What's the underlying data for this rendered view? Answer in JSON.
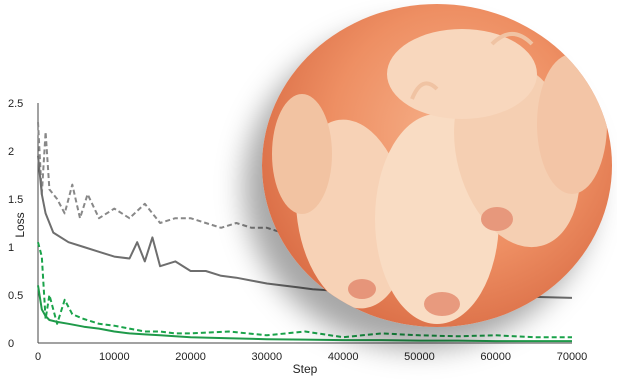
{
  "chart_data": {
    "type": "line",
    "xlabel": "Step",
    "ylabel": "Loss",
    "xlim": [
      0,
      70000
    ],
    "ylim": [
      0,
      2.5
    ],
    "x_ticks": [
      "0",
      "10000",
      "20000",
      "30000",
      "40000",
      "50000",
      "60000",
      "70000"
    ],
    "y_ticks": [
      "0",
      "0.5",
      "1",
      "1.5",
      "2",
      "2.5"
    ],
    "grid": false,
    "legend": "none",
    "series": [
      {
        "color": "#888888",
        "style": "dashed",
        "x": [
          0,
          500,
          1000,
          1500,
          2500,
          3500,
          4500,
          5500,
          6500,
          8000,
          10000,
          12000,
          14000,
          16000,
          18000,
          20000,
          22000,
          24000,
          26000,
          28000,
          30000,
          32000,
          34000,
          36000
        ],
        "y": [
          2.3,
          1.55,
          2.2,
          1.6,
          1.5,
          1.35,
          1.65,
          1.3,
          1.55,
          1.3,
          1.4,
          1.3,
          1.45,
          1.25,
          1.3,
          1.3,
          1.25,
          1.2,
          1.25,
          1.2,
          1.2,
          1.15,
          1.2,
          1.1
        ]
      },
      {
        "color": "#6e6e6e",
        "style": "solid",
        "x": [
          0,
          500,
          1000,
          2000,
          4000,
          6000,
          8000,
          10000,
          12000,
          13000,
          14000,
          15000,
          16000,
          18000,
          20000,
          22000,
          24000,
          26000,
          28000,
          30000,
          32000,
          34000,
          36000,
          38000,
          40000,
          45000,
          50000,
          55000,
          60000,
          65000,
          70000
        ],
        "y": [
          1.95,
          1.55,
          1.35,
          1.15,
          1.05,
          1.0,
          0.95,
          0.9,
          0.88,
          1.05,
          0.85,
          1.1,
          0.8,
          0.85,
          0.75,
          0.75,
          0.7,
          0.68,
          0.65,
          0.62,
          0.6,
          0.58,
          0.56,
          0.55,
          0.53,
          0.52,
          0.5,
          0.5,
          0.49,
          0.48,
          0.47
        ]
      },
      {
        "color": "#1aa34a",
        "style": "dashed",
        "x": [
          0,
          500,
          1000,
          1500,
          2500,
          3500,
          4500,
          6000,
          8000,
          10000,
          12000,
          14000,
          16000,
          18000,
          20000,
          25000,
          30000,
          35000,
          40000,
          45000,
          50000,
          55000,
          60000,
          65000,
          70000
        ],
        "y": [
          1.05,
          0.9,
          0.25,
          0.5,
          0.2,
          0.45,
          0.3,
          0.25,
          0.2,
          0.18,
          0.15,
          0.12,
          0.12,
          0.1,
          0.1,
          0.12,
          0.08,
          0.12,
          0.06,
          0.1,
          0.08,
          0.07,
          0.08,
          0.06,
          0.06
        ]
      },
      {
        "color": "#1f9a4a",
        "style": "solid",
        "x": [
          0,
          500,
          1000,
          1500,
          2500,
          4000,
          6000,
          8000,
          10000,
          12000,
          14000,
          16000,
          18000,
          20000,
          25000,
          30000,
          35000,
          40000,
          45000,
          50000,
          55000,
          60000,
          65000,
          70000
        ],
        "y": [
          0.6,
          0.35,
          0.28,
          0.24,
          0.22,
          0.2,
          0.17,
          0.15,
          0.12,
          0.1,
          0.09,
          0.08,
          0.07,
          0.06,
          0.05,
          0.04,
          0.035,
          0.03,
          0.03,
          0.025,
          0.025,
          0.02,
          0.02,
          0.02
        ]
      }
    ]
  },
  "photo": {
    "icon": "piglets-photo"
  }
}
